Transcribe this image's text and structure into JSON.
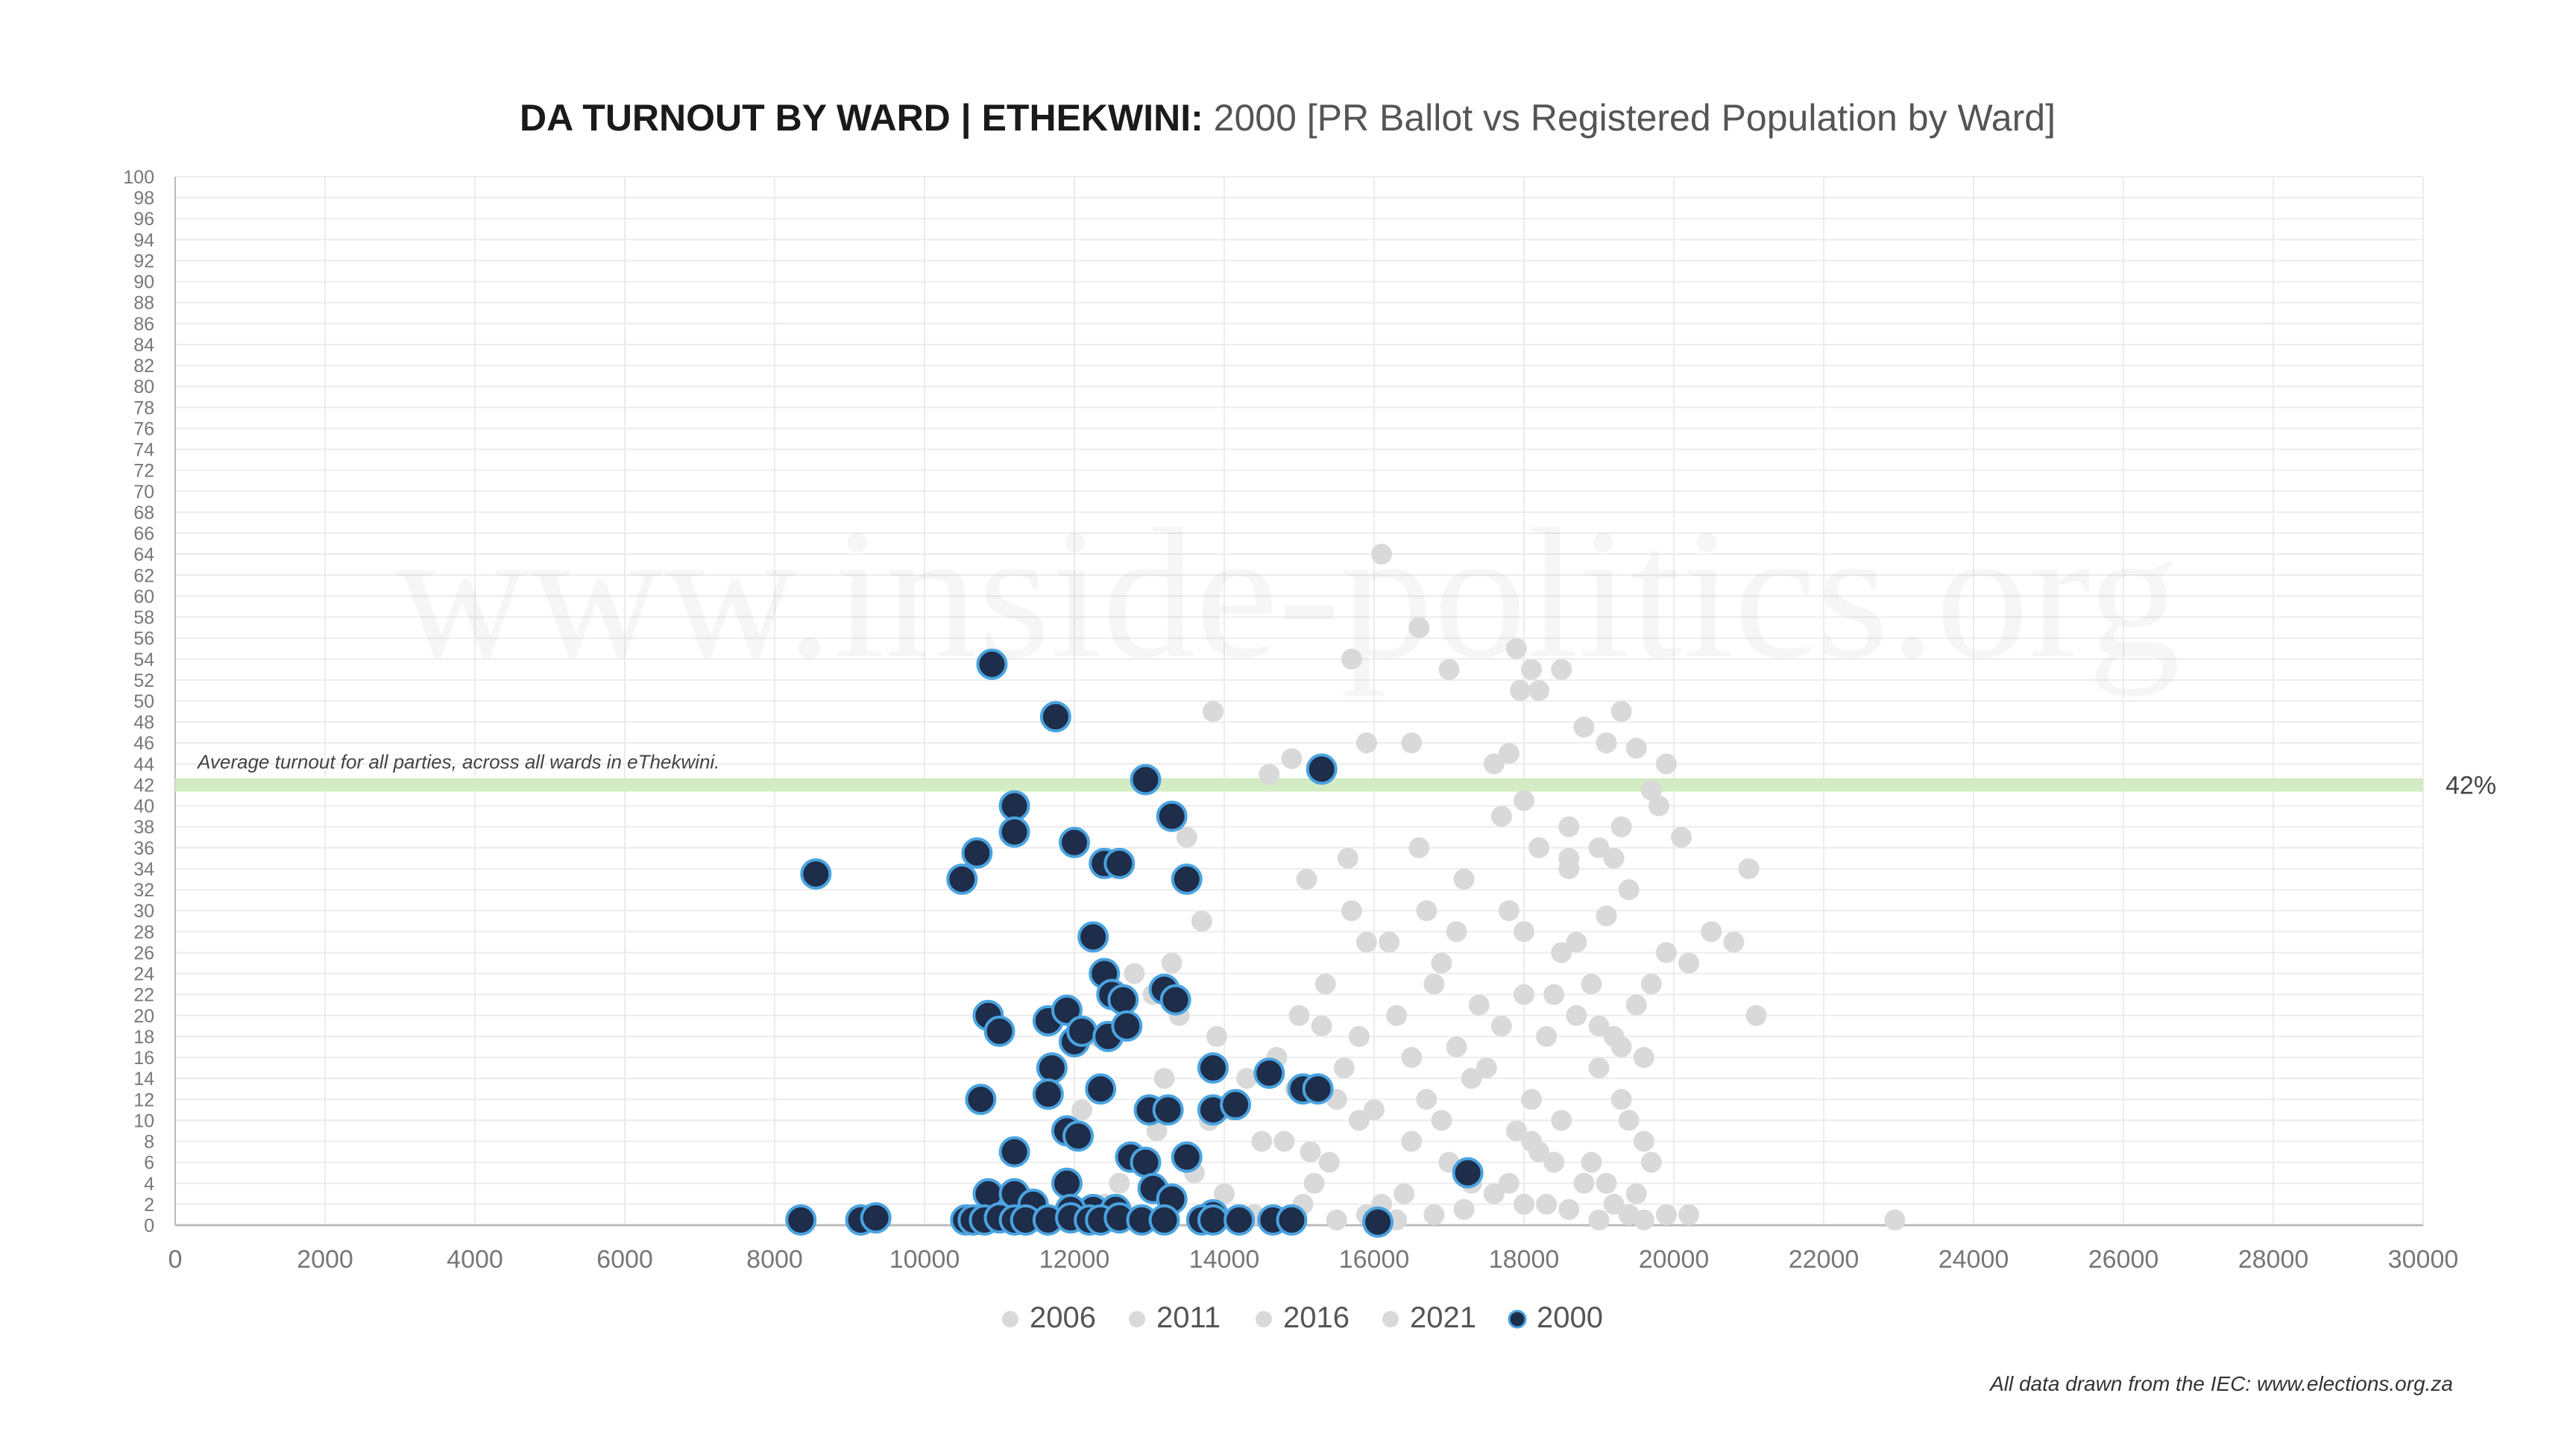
{
  "chart_data": {
    "type": "scatter",
    "title_bold": "DA TURNOUT BY WARD | ETHEKWINI:",
    "title_rest": " 2000 [PR Ballot vs Registered Population by Ward]",
    "xlim": [
      0,
      30000
    ],
    "ylim": [
      0,
      100
    ],
    "x_ticks": [
      "0",
      "2000",
      "4000",
      "6000",
      "8000",
      "10000",
      "12000",
      "14000",
      "16000",
      "18000",
      "20000",
      "22000",
      "24000",
      "26000",
      "28000",
      "30000"
    ],
    "y_ticks": [
      "0",
      "2",
      "4",
      "6",
      "8",
      "10",
      "12",
      "14",
      "16",
      "18",
      "20",
      "22",
      "24",
      "26",
      "28",
      "30",
      "32",
      "34",
      "36",
      "38",
      "40",
      "42",
      "44",
      "46",
      "48",
      "50",
      "52",
      "54",
      "56",
      "58",
      "60",
      "62",
      "64",
      "66",
      "68",
      "70",
      "72",
      "74",
      "76",
      "78",
      "80",
      "82",
      "84",
      "86",
      "88",
      "90",
      "92",
      "94",
      "96",
      "98",
      "100"
    ],
    "grid": true,
    "legend_position": "bottom",
    "reference_line": {
      "y": 42,
      "label": "42%",
      "annotation": "Average turnout for all parties, across all wards in eThekwini.",
      "color": "#d4ecc4"
    },
    "background_series_color": "#d9d9d9",
    "highlight_fill": "#1e2d4a",
    "highlight_stroke": "#4aa3e0",
    "series": [
      {
        "name": "2006",
        "color": "#d9d9d9",
        "points": [
          [
            12400,
            2
          ],
          [
            12700,
            1
          ],
          [
            12900,
            6
          ],
          [
            13050,
            22
          ],
          [
            13300,
            25
          ],
          [
            13500,
            37
          ],
          [
            13700,
            29
          ],
          [
            13900,
            18
          ],
          [
            14100,
            11
          ],
          [
            14300,
            14
          ],
          [
            14500,
            8
          ],
          [
            14700,
            16
          ],
          [
            12800,
            24
          ],
          [
            13200,
            14
          ],
          [
            13600,
            5
          ],
          [
            14000,
            3
          ],
          [
            14400,
            1
          ],
          [
            14800,
            0.5
          ],
          [
            13800,
            10
          ],
          [
            12600,
            4
          ],
          [
            12100,
            11
          ],
          [
            13100,
            9
          ],
          [
            12300,
            18
          ],
          [
            13400,
            20
          ],
          [
            11900,
            2
          ]
        ]
      },
      {
        "name": "2011",
        "color": "#d9d9d9",
        "points": [
          [
            13850,
            49
          ],
          [
            14600,
            43
          ],
          [
            14900,
            44.5
          ],
          [
            15300,
            19
          ],
          [
            15500,
            12
          ],
          [
            15700,
            30
          ],
          [
            15100,
            33
          ],
          [
            15900,
            1
          ],
          [
            15400,
            6
          ],
          [
            15600,
            15
          ],
          [
            14800,
            8
          ],
          [
            15000,
            20
          ],
          [
            15200,
            4
          ],
          [
            15800,
            10
          ],
          [
            15350,
            23
          ],
          [
            15650,
            35
          ],
          [
            15050,
            2
          ],
          [
            14950,
            13
          ],
          [
            15500,
            0.5
          ],
          [
            15800,
            18
          ],
          [
            15150,
            7
          ],
          [
            15900,
            27
          ]
        ]
      },
      {
        "name": "2016",
        "color": "#d9d9d9",
        "points": [
          [
            16100,
            64
          ],
          [
            16600,
            57
          ],
          [
            15700,
            54
          ],
          [
            15900,
            46
          ],
          [
            16500,
            46
          ],
          [
            17000,
            53
          ],
          [
            16300,
            20
          ],
          [
            16500,
            8
          ],
          [
            16700,
            12
          ],
          [
            16900,
            25
          ],
          [
            17100,
            17
          ],
          [
            17300,
            4
          ],
          [
            16200,
            27
          ],
          [
            16600,
            36
          ],
          [
            16800,
            1
          ],
          [
            17200,
            33
          ],
          [
            17400,
            21
          ],
          [
            16400,
            3
          ],
          [
            16900,
            10
          ],
          [
            17100,
            28
          ],
          [
            16700,
            30
          ],
          [
            17300,
            14
          ],
          [
            16300,
            0.5
          ],
          [
            16000,
            11
          ],
          [
            16500,
            16
          ],
          [
            17000,
            6
          ],
          [
            16800,
            23
          ],
          [
            17200,
            1.5
          ],
          [
            16100,
            2
          ]
        ]
      },
      {
        "name": "2021",
        "color": "#d9d9d9",
        "points": [
          [
            17900,
            55
          ],
          [
            18100,
            53
          ],
          [
            18500,
            53
          ],
          [
            17950,
            51
          ],
          [
            18200,
            51
          ],
          [
            17600,
            44
          ],
          [
            17800,
            45
          ],
          [
            18800,
            47.5
          ],
          [
            19100,
            46
          ],
          [
            19300,
            49
          ],
          [
            19500,
            45.5
          ],
          [
            19900,
            44
          ],
          [
            19700,
            41.5
          ],
          [
            19800,
            40
          ],
          [
            18000,
            40.5
          ],
          [
            17700,
            39
          ],
          [
            18600,
            38
          ],
          [
            19300,
            38
          ],
          [
            20100,
            37
          ],
          [
            18200,
            36
          ],
          [
            19000,
            36
          ],
          [
            19200,
            35
          ],
          [
            18600,
            34
          ],
          [
            18600,
            35
          ],
          [
            19400,
            32
          ],
          [
            19100,
            29.5
          ],
          [
            17800,
            30
          ],
          [
            18000,
            28
          ],
          [
            18700,
            27
          ],
          [
            18500,
            26
          ],
          [
            19500,
            21
          ],
          [
            19700,
            23
          ],
          [
            18000,
            22
          ],
          [
            18400,
            22
          ],
          [
            18300,
            18
          ],
          [
            18700,
            20
          ],
          [
            19000,
            19
          ],
          [
            19200,
            18
          ],
          [
            19300,
            17
          ],
          [
            19600,
            16
          ],
          [
            19000,
            15
          ],
          [
            18500,
            10
          ],
          [
            19400,
            10
          ],
          [
            19600,
            8
          ],
          [
            18900,
            6
          ],
          [
            19300,
            12
          ],
          [
            18100,
            8
          ],
          [
            18200,
            7
          ],
          [
            19700,
            6
          ],
          [
            18800,
            4
          ],
          [
            19100,
            4
          ],
          [
            19500,
            3
          ],
          [
            19900,
            1
          ],
          [
            20200,
            1
          ],
          [
            18600,
            1.5
          ],
          [
            18300,
            2
          ],
          [
            19000,
            0.5
          ],
          [
            19400,
            1
          ],
          [
            17600,
            3
          ],
          [
            17800,
            4
          ],
          [
            18000,
            2
          ],
          [
            19200,
            2
          ],
          [
            20800,
            27
          ],
          [
            20500,
            28
          ],
          [
            21000,
            34
          ],
          [
            21100,
            20
          ],
          [
            19900,
            26
          ],
          [
            20200,
            25
          ],
          [
            17500,
            15
          ],
          [
            17700,
            19
          ],
          [
            18100,
            12
          ],
          [
            18900,
            23
          ],
          [
            22950,
            0.5
          ],
          [
            19600,
            0.5
          ],
          [
            18400,
            6
          ],
          [
            17900,
            9
          ]
        ]
      },
      {
        "name": "2000",
        "color": "#1e2d4a",
        "points": [
          [
            8550,
            33.5
          ],
          [
            10900,
            53.5
          ],
          [
            11750,
            48.5
          ],
          [
            12950,
            42.5
          ],
          [
            15300,
            43.5
          ],
          [
            11200,
            40
          ],
          [
            13300,
            39
          ],
          [
            11200,
            37.5
          ],
          [
            12000,
            36.5
          ],
          [
            10700,
            35.5
          ],
          [
            10500,
            33
          ],
          [
            12400,
            34.5
          ],
          [
            12600,
            34.5
          ],
          [
            13500,
            33
          ],
          [
            12250,
            27.5
          ],
          [
            12400,
            24
          ],
          [
            12500,
            22
          ],
          [
            12650,
            21.5
          ],
          [
            13200,
            22.5
          ],
          [
            13350,
            21.5
          ],
          [
            10850,
            20
          ],
          [
            11000,
            18.5
          ],
          [
            11650,
            19.5
          ],
          [
            11900,
            20.5
          ],
          [
            12000,
            17.5
          ],
          [
            12100,
            18.5
          ],
          [
            12450,
            18
          ],
          [
            12700,
            19
          ],
          [
            11700,
            15
          ],
          [
            11650,
            12.5
          ],
          [
            10750,
            12
          ],
          [
            12350,
            13
          ],
          [
            13000,
            11
          ],
          [
            13250,
            11
          ],
          [
            13850,
            15
          ],
          [
            14600,
            14.5
          ],
          [
            15050,
            13
          ],
          [
            15250,
            13
          ],
          [
            13850,
            11
          ],
          [
            14150,
            11.5
          ],
          [
            11900,
            9
          ],
          [
            12050,
            8.5
          ],
          [
            11200,
            7
          ],
          [
            12750,
            6.5
          ],
          [
            12950,
            6
          ],
          [
            13500,
            6.5
          ],
          [
            17250,
            5
          ],
          [
            10850,
            3
          ],
          [
            11200,
            3
          ],
          [
            11900,
            4
          ],
          [
            13050,
            3.5
          ],
          [
            13300,
            2.5
          ],
          [
            11450,
            2
          ],
          [
            12250,
            1.5
          ],
          [
            12550,
            1.5
          ],
          [
            11950,
            1.5
          ],
          [
            13850,
            1
          ],
          [
            8350,
            0.5
          ],
          [
            9150,
            0.5
          ],
          [
            9350,
            0.7
          ],
          [
            10550,
            0.5
          ],
          [
            10650,
            0.5
          ],
          [
            10800,
            0.5
          ],
          [
            11000,
            0.7
          ],
          [
            11200,
            0.5
          ],
          [
            11350,
            0.5
          ],
          [
            11650,
            0.5
          ],
          [
            11950,
            0.7
          ],
          [
            12200,
            0.5
          ],
          [
            12350,
            0.5
          ],
          [
            12600,
            0.7
          ],
          [
            12900,
            0.5
          ],
          [
            13200,
            0.5
          ],
          [
            13700,
            0.5
          ],
          [
            13850,
            0.5
          ],
          [
            14200,
            0.5
          ],
          [
            14650,
            0.5
          ],
          [
            14900,
            0.5
          ],
          [
            16050,
            0.3
          ]
        ]
      }
    ],
    "watermark": "www.inside-politics.org",
    "source_note": "All data drawn from the IEC: www.elections.org.za"
  }
}
